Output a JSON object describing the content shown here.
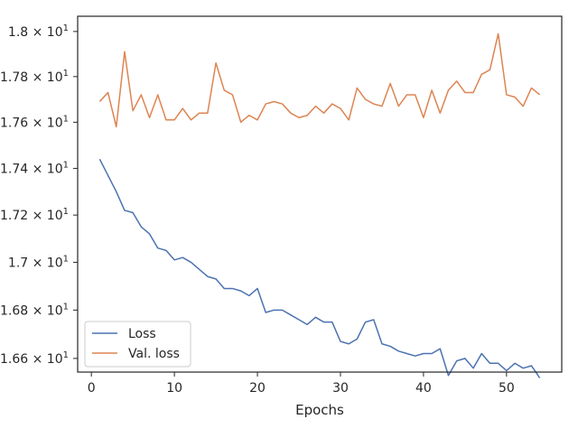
{
  "chart_data": {
    "type": "line",
    "xlabel": "Epochs",
    "ylabel": "",
    "title": "",
    "xlim": [
      -1.65,
      56.65
    ],
    "ylim": [
      16.544,
      18.068
    ],
    "yscale": "log",
    "grid": false,
    "legend_position": "lower-left",
    "x_ticks": [
      0,
      10,
      20,
      30,
      40,
      50
    ],
    "y_ticks": [
      {
        "value": 16.6,
        "mantissa": "1.66",
        "exponent": "1"
      },
      {
        "value": 16.8,
        "mantissa": "1.68",
        "exponent": "1"
      },
      {
        "value": 17.0,
        "mantissa": "1.7",
        "exponent": "1"
      },
      {
        "value": 17.2,
        "mantissa": "1.72",
        "exponent": "1"
      },
      {
        "value": 17.4,
        "mantissa": "1.74",
        "exponent": "1"
      },
      {
        "value": 17.6,
        "mantissa": "1.76",
        "exponent": "1"
      },
      {
        "value": 17.8,
        "mantissa": "1.78",
        "exponent": "1"
      },
      {
        "value": 18.0,
        "mantissa": "1.8",
        "exponent": "1"
      }
    ],
    "x": [
      1,
      2,
      3,
      4,
      5,
      6,
      7,
      8,
      9,
      10,
      11,
      12,
      13,
      14,
      15,
      16,
      17,
      18,
      19,
      20,
      21,
      22,
      23,
      24,
      25,
      26,
      27,
      28,
      29,
      30,
      31,
      32,
      33,
      34,
      35,
      36,
      37,
      38,
      39,
      40,
      41,
      42,
      43,
      44,
      45,
      46,
      47,
      48,
      49,
      50,
      51,
      52,
      53,
      54
    ],
    "series": [
      {
        "name": "Loss",
        "color": "#4c72b0",
        "values": [
          17.44,
          17.37,
          17.3,
          17.22,
          17.21,
          17.15,
          17.12,
          17.06,
          17.05,
          17.01,
          17.02,
          17.0,
          16.97,
          16.94,
          16.93,
          16.89,
          16.89,
          16.88,
          16.86,
          16.89,
          16.79,
          16.8,
          16.8,
          16.78,
          16.76,
          16.74,
          16.77,
          16.75,
          16.75,
          16.67,
          16.66,
          16.68,
          16.75,
          16.76,
          16.66,
          16.65,
          16.63,
          16.62,
          16.61,
          16.62,
          16.62,
          16.64,
          16.53,
          16.59,
          16.6,
          16.56,
          16.62,
          16.58,
          16.58,
          16.55,
          16.58,
          16.56,
          16.57,
          16.52
        ]
      },
      {
        "name": "Val. loss",
        "color": "#dd8452",
        "values": [
          17.69,
          17.73,
          17.58,
          17.91,
          17.65,
          17.72,
          17.62,
          17.72,
          17.61,
          17.61,
          17.66,
          17.61,
          17.64,
          17.64,
          17.86,
          17.74,
          17.72,
          17.6,
          17.63,
          17.61,
          17.68,
          17.69,
          17.68,
          17.64,
          17.62,
          17.63,
          17.67,
          17.64,
          17.68,
          17.66,
          17.61,
          17.75,
          17.7,
          17.68,
          17.67,
          17.77,
          17.67,
          17.72,
          17.72,
          17.62,
          17.74,
          17.64,
          17.74,
          17.78,
          17.73,
          17.73,
          17.81,
          17.83,
          17.99,
          17.72,
          17.71,
          17.67,
          17.75,
          17.72
        ]
      }
    ]
  }
}
